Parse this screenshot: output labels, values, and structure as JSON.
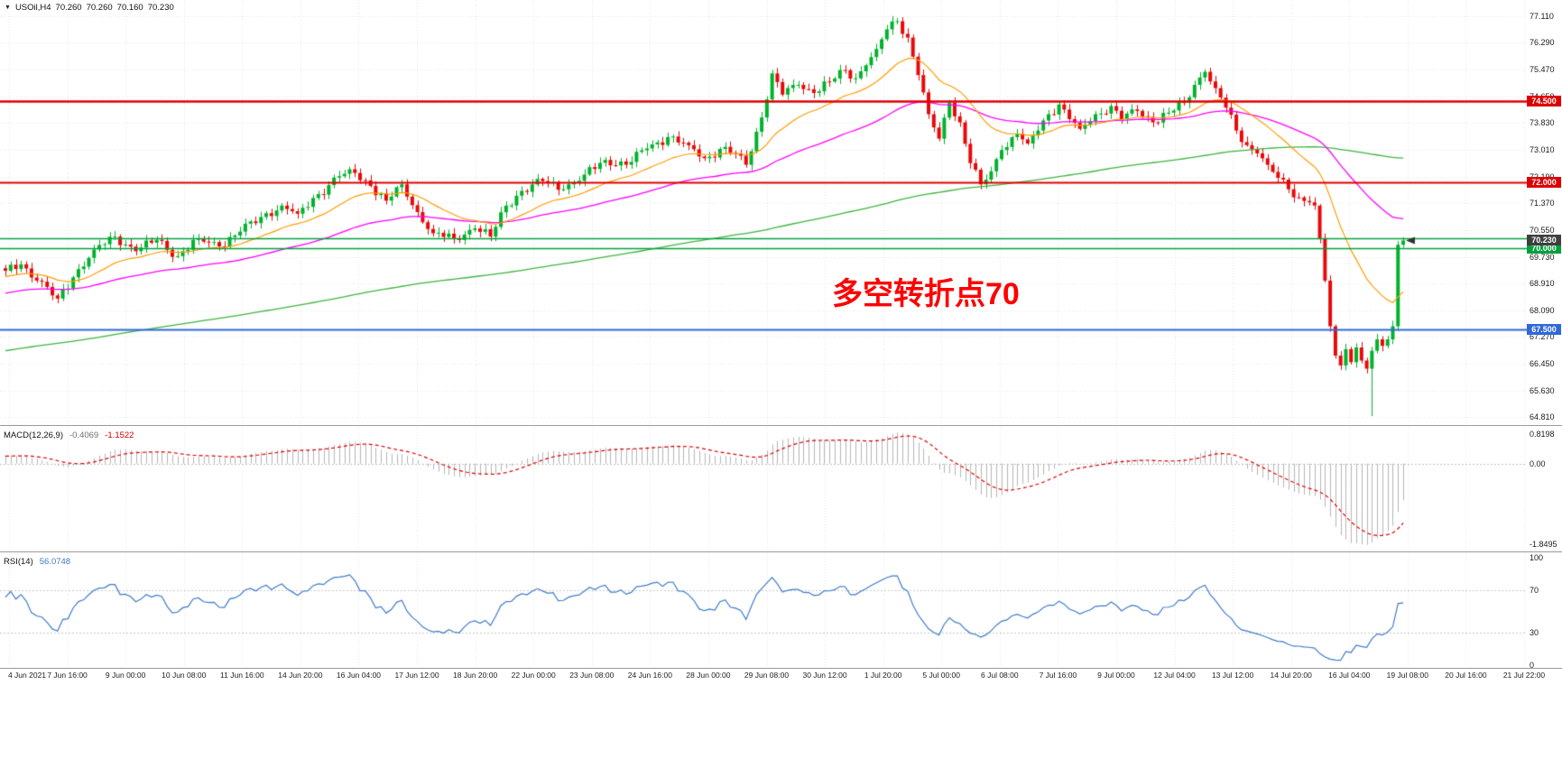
{
  "window": {
    "background": "#ffffff"
  },
  "header": {
    "dropdown_icon": "▼",
    "symbol": "USOil,H4",
    "open": "70.260",
    "high": "70.260",
    "low": "70.160",
    "close": "70.230"
  },
  "annotation": {
    "text": "多空转折点70",
    "color": "#ff0000"
  },
  "chart_data": [
    {
      "type": "candlestick",
      "title": "USOil H4 price chart",
      "y_axis": {
        "labels": [
          "77.110",
          "76.290",
          "75.470",
          "74.650",
          "73.830",
          "73.010",
          "72.190",
          "71.370",
          "70.550",
          "69.730",
          "68.910",
          "68.090",
          "67.270",
          "66.450",
          "65.630",
          "64.810"
        ],
        "top": 77.6,
        "bottom": 64.6
      },
      "x_axis": {
        "labels": [
          "4 Jun 2021",
          "7 Jun 16:00",
          "9 Jun 00:00",
          "10 Jun 08:00",
          "11 Jun 16:00",
          "14 Jun 20:00",
          "16 Jun 04:00",
          "17 Jun 12:00",
          "18 Jun 20:00",
          "22 Jun 00:00",
          "23 Jun 08:00",
          "24 Jun 16:00",
          "28 Jun 00:00",
          "29 Jun 08:00",
          "30 Jun 12:00",
          "1 Jul 20:00",
          "5 Jul 00:00",
          "6 Jul 08:00",
          "7 Jul 16:00",
          "9 Jul 00:00",
          "12 Jul 04:00",
          "13 Jul 12:00",
          "14 Jul 20:00",
          "16 Jul 04:00",
          "19 Jul 08:00",
          "20 Jul 16:00",
          "21 Jul 22:00"
        ]
      },
      "horizontal_lines": [
        {
          "price": 74.5,
          "label": "74.500",
          "color": "#dd0000",
          "width": 2.4
        },
        {
          "price": 72.0,
          "label": "72.000",
          "color": "#dd0000",
          "width": 2
        },
        {
          "price": 70.3,
          "label": "",
          "color": "#00a03c",
          "width": 1.6
        },
        {
          "price": 70.0,
          "label": "70.000",
          "color": "#00a03c",
          "width": 1.6
        },
        {
          "price": 67.5,
          "label": "67.500",
          "color": "#2f68d8",
          "width": 2.2
        }
      ],
      "current_price": {
        "value": 70.23,
        "label": "70.230",
        "badge_color": "#3f3f3f"
      },
      "num_candles": 269,
      "price_keypoints": [
        [
          0,
          69.3
        ],
        [
          3,
          69.5
        ],
        [
          6,
          69.0
        ],
        [
          10,
          68.45
        ],
        [
          13,
          69.1
        ],
        [
          17,
          69.95
        ],
        [
          21,
          70.35
        ],
        [
          25,
          69.9
        ],
        [
          29,
          70.25
        ],
        [
          33,
          69.75
        ],
        [
          37,
          70.3
        ],
        [
          41,
          70.05
        ],
        [
          45,
          70.5
        ],
        [
          49,
          70.95
        ],
        [
          53,
          71.3
        ],
        [
          56,
          71.05
        ],
        [
          60,
          71.65
        ],
        [
          64,
          72.2
        ],
        [
          67,
          72.3
        ],
        [
          70,
          71.9
        ],
        [
          73,
          71.45
        ],
        [
          76,
          71.95
        ],
        [
          79,
          71.1
        ],
        [
          82,
          70.45
        ],
        [
          86,
          70.3
        ],
        [
          90,
          70.6
        ],
        [
          93,
          70.35
        ],
        [
          96,
          71.3
        ],
        [
          99,
          71.75
        ],
        [
          103,
          72.05
        ],
        [
          107,
          71.8
        ],
        [
          111,
          72.25
        ],
        [
          115,
          72.7
        ],
        [
          119,
          72.55
        ],
        [
          123,
          73.05
        ],
        [
          127,
          73.4
        ],
        [
          131,
          73.15
        ],
        [
          134,
          72.75
        ],
        [
          138,
          73.1
        ],
        [
          142,
          72.55
        ],
        [
          145,
          74.0
        ],
        [
          147,
          75.35
        ],
        [
          149,
          74.7
        ],
        [
          152,
          75.0
        ],
        [
          155,
          74.75
        ],
        [
          158,
          75.1
        ],
        [
          161,
          75.45
        ],
        [
          163,
          75.2
        ],
        [
          165,
          75.6
        ],
        [
          167,
          76.1
        ],
        [
          169,
          76.7
        ],
        [
          171,
          76.95
        ],
        [
          173,
          76.45
        ],
        [
          175,
          75.3
        ],
        [
          177,
          74.1
        ],
        [
          179,
          73.35
        ],
        [
          181,
          74.45
        ],
        [
          183,
          73.85
        ],
        [
          185,
          72.6
        ],
        [
          187,
          71.95
        ],
        [
          189,
          72.35
        ],
        [
          191,
          73.0
        ],
        [
          194,
          73.5
        ],
        [
          196,
          73.2
        ],
        [
          198,
          73.6
        ],
        [
          200,
          74.1
        ],
        [
          202,
          74.4
        ],
        [
          204,
          73.95
        ],
        [
          206,
          73.65
        ],
        [
          209,
          74.1
        ],
        [
          212,
          74.35
        ],
        [
          214,
          73.95
        ],
        [
          217,
          74.2
        ],
        [
          220,
          73.85
        ],
        [
          223,
          74.15
        ],
        [
          226,
          74.45
        ],
        [
          228,
          75.0
        ],
        [
          230,
          75.4
        ],
        [
          232,
          74.9
        ],
        [
          234,
          74.3
        ],
        [
          236,
          73.6
        ],
        [
          238,
          73.15
        ],
        [
          240,
          72.9
        ],
        [
          242,
          72.55
        ],
        [
          244,
          72.15
        ],
        [
          246,
          71.8
        ],
        [
          248,
          71.55
        ],
        [
          250,
          71.4
        ],
        [
          251,
          71.3
        ],
        [
          252,
          70.3
        ],
        [
          253,
          69.0
        ],
        [
          254,
          67.6
        ],
        [
          255,
          66.7
        ],
        [
          256,
          66.4
        ],
        [
          257,
          66.9
        ],
        [
          258,
          66.5
        ],
        [
          259,
          66.95
        ],
        [
          260,
          66.55
        ],
        [
          261,
          66.3
        ],
        [
          262,
          66.85
        ],
        [
          263,
          67.2
        ],
        [
          264,
          67.0
        ],
        [
          265,
          67.2
        ],
        [
          266,
          67.6
        ],
        [
          267,
          70.1
        ],
        [
          268,
          70.23
        ]
      ],
      "candle_overrides": {
        "171": {
          "high": 77.05
        },
        "262": {
          "low": 64.85
        }
      },
      "ma_lines": [
        {
          "name": "fast",
          "type": "ema",
          "period": 20,
          "color": "#ff9c00"
        },
        {
          "name": "medium",
          "type": "ema",
          "period": 60,
          "color": "#ff00ff"
        },
        {
          "name": "slow",
          "type": "sma",
          "period": 200,
          "color": "#3db53d"
        }
      ],
      "colors": {
        "up": "#00b22d",
        "down": "#e80909",
        "grid": "#e6e6e6",
        "axis_text": "#1a1a1a"
      }
    },
    {
      "type": "macd",
      "label": "MACD(12,26,9)",
      "values": [
        "-0.4069",
        "-1.1522"
      ],
      "params": {
        "fast": 12,
        "slow": 26,
        "signal": 9
      },
      "axis_labels": {
        "top": "0.8198",
        "zero": "0.00",
        "bottom": "-1.8495"
      },
      "ylim": [
        -1.8495,
        0.8198
      ],
      "colors": {
        "histogram": "#b4b4b4",
        "signal": "#dd0000"
      }
    },
    {
      "type": "rsi",
      "label": "RSI(14)",
      "value": "56.0748",
      "period": 14,
      "axis_labels": [
        "100",
        "70",
        "30",
        "0"
      ],
      "levels": [
        70,
        30
      ],
      "ylim": [
        0,
        100
      ],
      "color": "#3e7bc8"
    }
  ]
}
